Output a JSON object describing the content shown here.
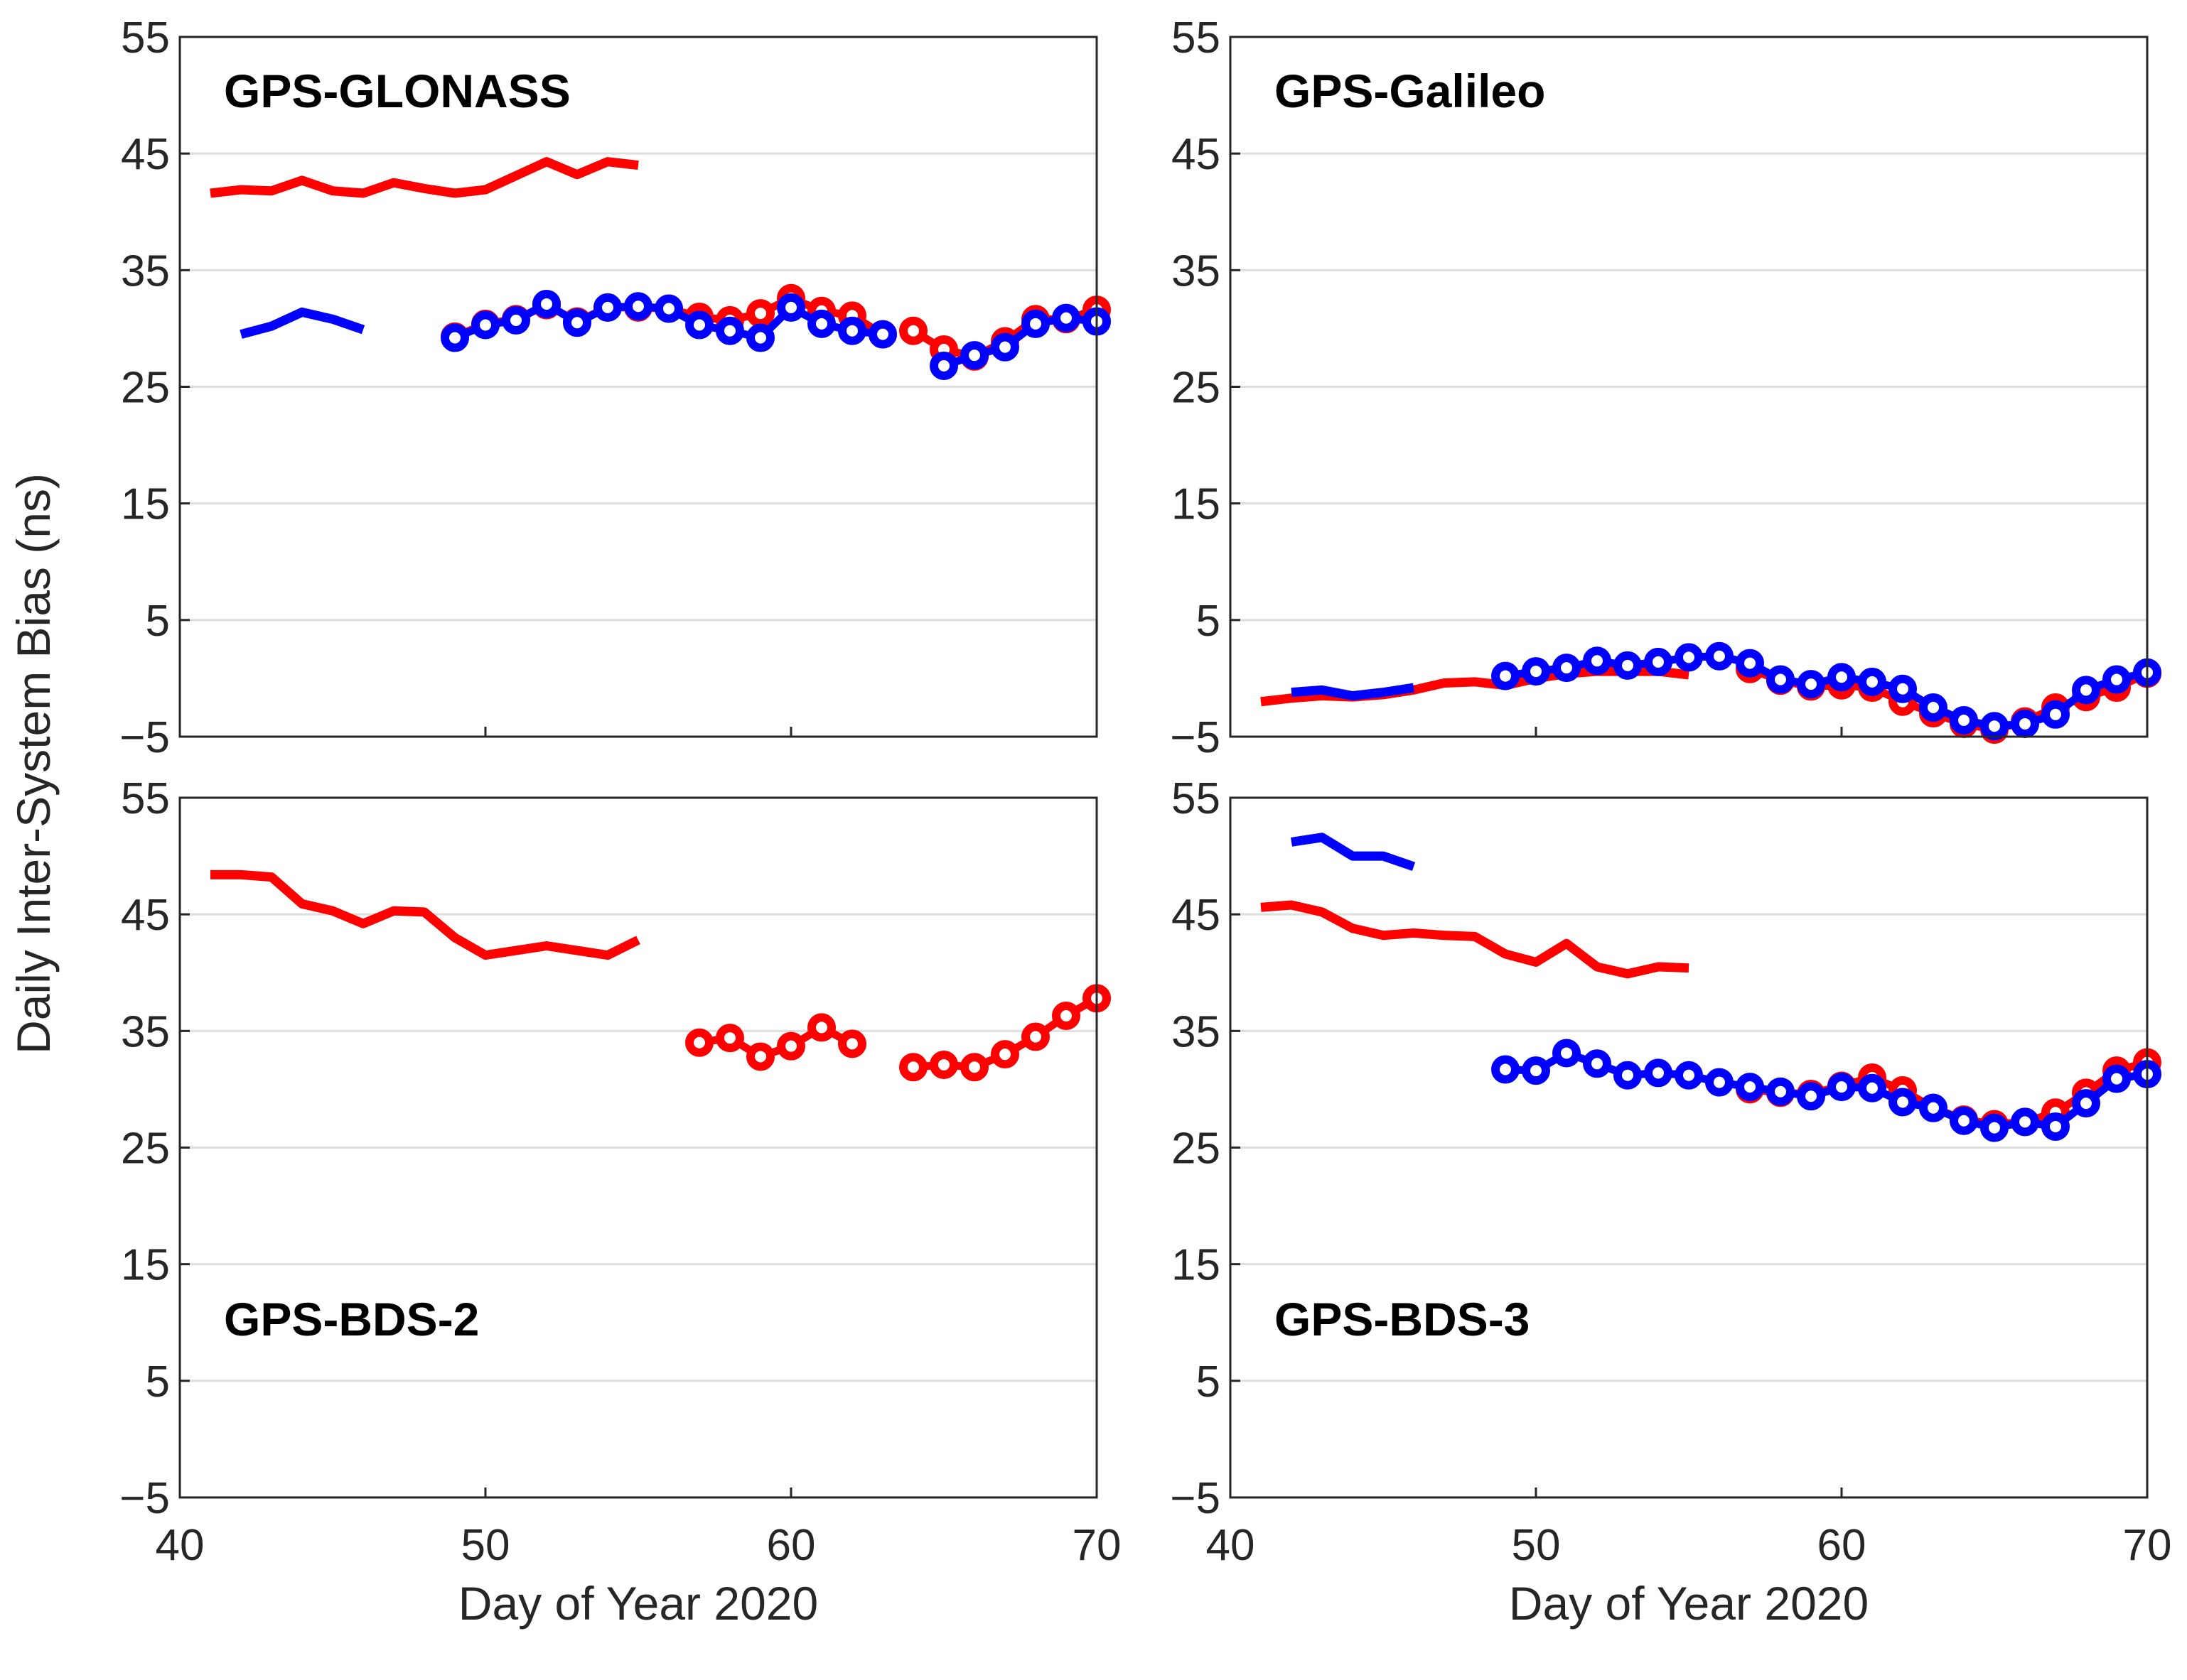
{
  "figure": {
    "ylabel": "Daily Inter-System Bias (ns)",
    "xlabel": "Day of Year 2020"
  },
  "colors": {
    "red": "#ff0000",
    "blue": "#0000ff",
    "grid": "#dedede",
    "axis": "#262626"
  },
  "chart_data": [
    {
      "type": "line",
      "title": "GPS-GLONASS",
      "xlabel": "",
      "ylabel": "Daily Inter-System Bias (ns)",
      "xlim": [
        40,
        70
      ],
      "ylim": [
        -5,
        55
      ],
      "xticks": [
        40,
        50,
        60,
        70
      ],
      "xtick_labels": [
        "",
        "",
        "",
        ""
      ],
      "yticks": [
        -5,
        5,
        15,
        25,
        35,
        45,
        55
      ],
      "ytick_labels": [
        "−5",
        "5",
        "15",
        "25",
        "35",
        "45",
        "55"
      ],
      "grid": true,
      "series": [
        {
          "name": "red line",
          "color": "red",
          "style": "line",
          "x": [
            41,
            42,
            43,
            44,
            45,
            46,
            47,
            48,
            49,
            50,
            51,
            52,
            53,
            54,
            55
          ],
          "y": [
            41.6,
            41.9,
            41.8,
            42.7,
            41.8,
            41.6,
            42.5,
            42.0,
            41.6,
            41.9,
            43.1,
            44.3,
            43.2,
            44.3,
            44.0
          ]
        },
        {
          "name": "blue line",
          "color": "blue",
          "style": "line",
          "x": [
            42,
            43,
            44,
            45,
            46
          ],
          "y": [
            29.5,
            30.2,
            31.4,
            30.8,
            29.9
          ]
        },
        {
          "name": "red circles",
          "color": "red",
          "style": "line-marker",
          "x": [
            49,
            50,
            51,
            52,
            53,
            54,
            55,
            56,
            57,
            58,
            59,
            60,
            61,
            62,
            63
          ],
          "y": [
            29.3,
            30.4,
            30.8,
            32.0,
            30.6,
            31.8,
            31.8,
            31.7,
            31.0,
            30.7,
            31.3,
            32.6,
            31.5,
            31.1,
            29.5
          ]
        },
        {
          "name": "red circles 2",
          "color": "red",
          "style": "line-marker",
          "x": [
            64,
            65,
            66,
            67,
            68,
            69,
            70
          ],
          "y": [
            29.8,
            28.2,
            27.6,
            28.9,
            30.8,
            30.8,
            31.6
          ]
        },
        {
          "name": "blue circles",
          "color": "blue",
          "style": "line-marker",
          "x": [
            49,
            50,
            51,
            52,
            53,
            54,
            55,
            56,
            57,
            58,
            59,
            60,
            61,
            62,
            63
          ],
          "y": [
            29.2,
            30.3,
            30.7,
            32.1,
            30.5,
            31.8,
            31.9,
            31.7,
            30.3,
            29.8,
            29.2,
            31.8,
            30.4,
            29.8,
            29.5
          ]
        },
        {
          "name": "blue circles 2",
          "color": "blue",
          "style": "line-marker",
          "x": [
            65,
            66,
            67,
            68,
            69,
            70
          ],
          "y": [
            26.8,
            27.7,
            28.4,
            30.4,
            30.9,
            30.6
          ]
        }
      ]
    },
    {
      "type": "line",
      "title": "GPS-Galileo",
      "xlabel": "",
      "ylabel": "",
      "xlim": [
        40,
        70
      ],
      "ylim": [
        -5,
        55
      ],
      "xticks": [
        40,
        50,
        60,
        70
      ],
      "xtick_labels": [
        "",
        "",
        "",
        ""
      ],
      "yticks": [
        -5,
        5,
        15,
        25,
        35,
        45,
        55
      ],
      "ytick_labels": [
        "−5",
        "5",
        "15",
        "25",
        "35",
        "45",
        "55"
      ],
      "grid": true,
      "series": [
        {
          "name": "red line",
          "color": "red",
          "style": "line",
          "x": [
            41,
            42,
            43,
            44,
            45,
            46,
            47,
            48,
            49,
            50,
            51,
            52,
            53,
            54,
            55
          ],
          "y": [
            -2.0,
            -1.7,
            -1.5,
            -1.6,
            -1.4,
            -1.0,
            -0.4,
            -0.3,
            -0.6,
            0.0,
            0.4,
            0.6,
            0.6,
            0.6,
            0.3
          ]
        },
        {
          "name": "blue line",
          "color": "blue",
          "style": "line",
          "x": [
            42,
            43,
            44,
            45,
            46
          ],
          "y": [
            -1.2,
            -1.0,
            -1.5,
            -1.2,
            -0.8
          ]
        },
        {
          "name": "red circles",
          "color": "red",
          "style": "line-marker",
          "x": [
            57,
            58,
            59,
            60,
            61,
            62,
            63,
            64,
            65,
            66,
            67,
            68,
            69,
            70
          ],
          "y": [
            0.8,
            -0.2,
            -0.7,
            -0.6,
            -0.8,
            -2.0,
            -3.0,
            -3.9,
            -4.4,
            -3.7,
            -2.5,
            -1.6,
            -0.8,
            0.4
          ]
        },
        {
          "name": "blue circles",
          "color": "blue",
          "style": "line-marker",
          "x": [
            49,
            50,
            51,
            52,
            53,
            54,
            55,
            56,
            57,
            58,
            59,
            60,
            61,
            62,
            63,
            64,
            65,
            66,
            67,
            68,
            69,
            70
          ],
          "y": [
            0.2,
            0.6,
            0.9,
            1.5,
            1.1,
            1.4,
            1.8,
            1.9,
            1.3,
            -0.1,
            -0.5,
            0.1,
            -0.3,
            -0.9,
            -2.5,
            -3.6,
            -4.1,
            -3.9,
            -3.1,
            -1.0,
            -0.1,
            0.5
          ]
        }
      ]
    },
    {
      "type": "line",
      "title": "GPS-BDS-2",
      "xlabel": "Day of Year 2020",
      "ylabel": "",
      "xlim": [
        40,
        70
      ],
      "ylim": [
        -5,
        55
      ],
      "xticks": [
        40,
        50,
        60,
        70
      ],
      "xtick_labels": [
        "40",
        "50",
        "60",
        "70"
      ],
      "yticks": [
        -5,
        5,
        15,
        25,
        35,
        45,
        55
      ],
      "ytick_labels": [
        "−5",
        "5",
        "15",
        "25",
        "35",
        "45",
        "55"
      ],
      "grid": true,
      "series": [
        {
          "name": "red line",
          "color": "red",
          "style": "line",
          "x": [
            41,
            42,
            43,
            44,
            45,
            46,
            47,
            48,
            49,
            50,
            51,
            52,
            53,
            54,
            55
          ],
          "y": [
            48.4,
            48.4,
            48.2,
            45.9,
            45.3,
            44.2,
            45.3,
            45.2,
            43.0,
            41.5,
            41.9,
            42.3,
            41.9,
            41.5,
            42.8
          ]
        },
        {
          "name": "red circles",
          "color": "red",
          "style": "line-marker",
          "x": [
            57,
            58,
            59,
            60,
            61,
            62
          ],
          "y": [
            34.0,
            34.4,
            32.8,
            33.7,
            35.3,
            33.9
          ]
        },
        {
          "name": "red circles 2",
          "color": "red",
          "style": "line-marker",
          "x": [
            64,
            65,
            66,
            67,
            68,
            69,
            70
          ],
          "y": [
            31.9,
            32.1,
            31.9,
            33.0,
            34.5,
            36.3,
            37.8
          ]
        }
      ]
    },
    {
      "type": "line",
      "title": "GPS-BDS-3",
      "xlabel": "Day of Year 2020",
      "ylabel": "",
      "xlim": [
        40,
        70
      ],
      "ylim": [
        -5,
        55
      ],
      "xticks": [
        40,
        50,
        60,
        70
      ],
      "xtick_labels": [
        "40",
        "50",
        "60",
        "70"
      ],
      "yticks": [
        -5,
        5,
        15,
        25,
        35,
        45,
        55
      ],
      "ytick_labels": [
        "−5",
        "5",
        "15",
        "25",
        "35",
        "45",
        "55"
      ],
      "grid": true,
      "series": [
        {
          "name": "red line",
          "color": "red",
          "style": "line",
          "x": [
            41,
            42,
            43,
            44,
            45,
            46,
            47,
            48,
            49,
            50,
            51,
            52,
            53,
            54,
            55
          ],
          "y": [
            45.6,
            45.8,
            45.2,
            43.8,
            43.2,
            43.4,
            43.2,
            43.1,
            41.6,
            40.9,
            42.5,
            40.5,
            39.9,
            40.5,
            40.4
          ]
        },
        {
          "name": "blue line",
          "color": "blue",
          "style": "line",
          "x": [
            42,
            43,
            44,
            45,
            46
          ],
          "y": [
            51.2,
            51.6,
            50.0,
            50.0,
            49.1
          ]
        },
        {
          "name": "red circles",
          "color": "red",
          "style": "line-marker",
          "x": [
            57,
            58,
            59,
            60,
            61,
            62,
            63,
            64,
            65,
            66,
            67,
            68,
            69,
            70
          ],
          "y": [
            30.0,
            29.7,
            29.6,
            30.3,
            31.0,
            29.9,
            28.4,
            27.4,
            27.0,
            27.2,
            28.0,
            29.7,
            31.6,
            32.3
          ]
        },
        {
          "name": "blue circles",
          "color": "blue",
          "style": "line-marker",
          "x": [
            49,
            50,
            51,
            52,
            53,
            54,
            55,
            56,
            57,
            58,
            59,
            60,
            61,
            62,
            63,
            64,
            65,
            66,
            67,
            68,
            69,
            70
          ],
          "y": [
            31.7,
            31.6,
            33.1,
            32.2,
            31.2,
            31.4,
            31.2,
            30.6,
            30.2,
            29.8,
            29.4,
            30.2,
            30.1,
            28.9,
            28.4,
            27.3,
            26.7,
            27.2,
            26.8,
            28.8,
            30.9,
            31.3
          ]
        }
      ]
    }
  ]
}
